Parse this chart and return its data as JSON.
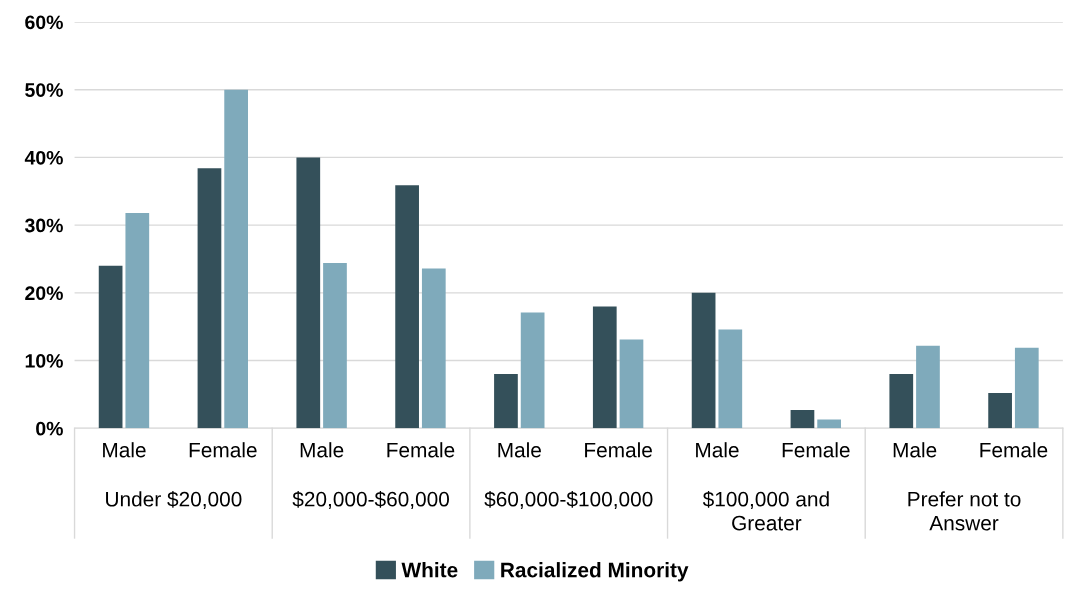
{
  "chart_data": {
    "type": "bar",
    "categories": [
      "Male",
      "Female",
      "Male",
      "Female",
      "Male",
      "Female",
      "Male",
      "Female",
      "Male",
      "Female"
    ],
    "annotations": [
      "Under $20,000",
      "$20,000-$60,000",
      "$60,000-$100,000",
      "$100,000 and\nGreater",
      "Prefer not to\nAnswer"
    ],
    "series": [
      {
        "name": "White",
        "color": "#34505a",
        "values": [
          24,
          38.4,
          40,
          35.9,
          8,
          18,
          20,
          2.7,
          8,
          5.2
        ]
      },
      {
        "name": "Racialized Minority",
        "color": "#7faabb",
        "values": [
          31.8,
          50,
          24.4,
          23.6,
          17.1,
          13.1,
          14.6,
          1.3,
          12.2,
          11.9
        ]
      }
    ],
    "ylim": [
      0,
      60
    ],
    "yticks": [
      {
        "value": 0,
        "label": "0%"
      },
      {
        "value": 10,
        "label": "10%"
      },
      {
        "value": 20,
        "label": "20%"
      },
      {
        "value": 30,
        "label": "30%"
      },
      {
        "value": 40,
        "label": "40%"
      },
      {
        "value": 50,
        "label": "50%"
      },
      {
        "value": 60,
        "label": "60%"
      }
    ],
    "grid": "y",
    "legend": "bottom"
  }
}
